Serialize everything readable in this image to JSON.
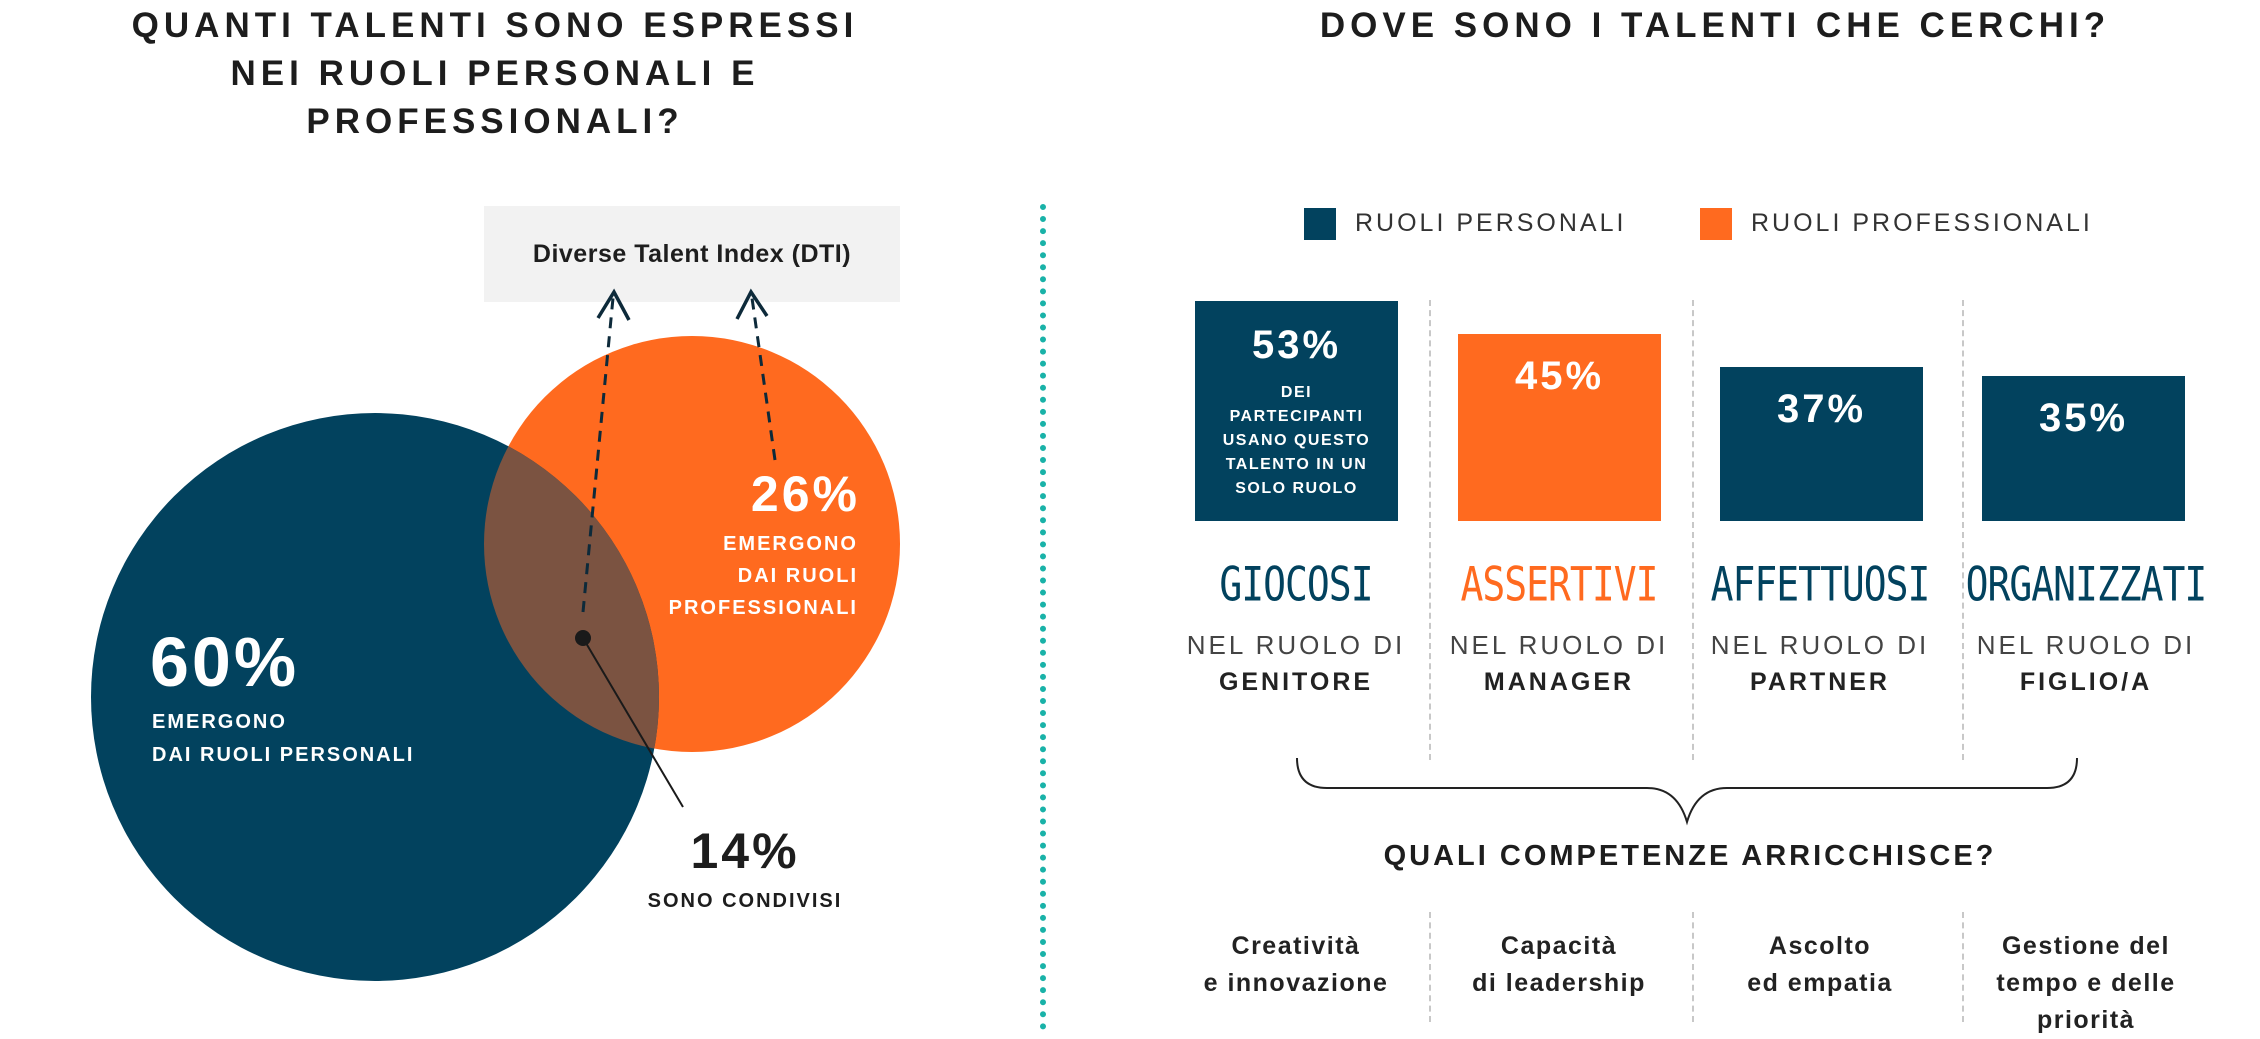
{
  "left": {
    "title_lines": [
      "QUANTI TALENTI SONO ESPRESSI",
      "NEI RUOLI PERSONALI E",
      "PROFESSIONALI?"
    ],
    "dti_label": "Diverse Talent Index (DTI)",
    "personal": {
      "pct": "60%",
      "line1": "EMERGONO",
      "line2": "DAI RUOLI PERSONALI"
    },
    "professional": {
      "pct": "26%",
      "line1": "EMERGONO",
      "line2": "DAI RUOLI",
      "line3": "PROFESSIONALI"
    },
    "shared": {
      "pct": "14%",
      "label": "SONO CONDIVISI"
    }
  },
  "right": {
    "title": "DOVE SONO I TALENTI CHE CERCHI?",
    "legend": [
      {
        "label": "RUOLI PERSONALI",
        "color": "#02425e"
      },
      {
        "label": "RUOLI PROFESSIONALI",
        "color": "#ff6a1f"
      }
    ],
    "bar_note_lines": [
      "DEI",
      "PARTECIPANTI",
      "USANO QUESTO",
      "TALENTO IN UN",
      "SOLO RUOLO"
    ],
    "role_prefix": "NEL RUOLO DI",
    "skills_title": "QUALI COMPETENZE ARRICCHISCE?",
    "columns": [
      {
        "pct_label": "53%",
        "trait": "GIOCOSI",
        "role": "GENITORE",
        "skill1": "Creatività",
        "skill2": "e innovazione",
        "skill3": ""
      },
      {
        "pct_label": "45%",
        "trait": "ASSERTIVI",
        "role": "MANAGER",
        "skill1": "Capacità",
        "skill2": "di leadership",
        "skill3": ""
      },
      {
        "pct_label": "37%",
        "trait": "AFFETTUOSI",
        "role": "PARTNER",
        "skill1": "Ascolto",
        "skill2": "ed empatia",
        "skill3": ""
      },
      {
        "pct_label": "35%",
        "trait": "ORGANIZZATI",
        "role": "FIGLIO/A",
        "skill1": "Gestione del",
        "skill2": "tempo e delle",
        "skill3": "priorità"
      }
    ]
  },
  "chart_data": [
    {
      "type": "venn",
      "sets": [
        {
          "name": "RUOLI PERSONALI",
          "value": 60,
          "color": "#02425e"
        },
        {
          "name": "RUOLI PROFESSIONALI",
          "value": 26,
          "color": "#ff6a1f"
        }
      ],
      "intersection": 14,
      "intersection_color": "#7b5341"
    },
    {
      "type": "bar",
      "categories": [
        "GIOCOSI",
        "ASSERTIVI",
        "AFFETTUOSI",
        "ORGANIZZATI"
      ],
      "values": [
        53,
        45,
        37,
        35
      ],
      "series": [
        {
          "name": "RUOLI PERSONALI",
          "values": [
            53,
            null,
            37,
            35
          ]
        },
        {
          "name": "RUOLI PROFESSIONALI",
          "values": [
            null,
            45,
            null,
            null
          ]
        }
      ],
      "legend_position": "top"
    }
  ]
}
